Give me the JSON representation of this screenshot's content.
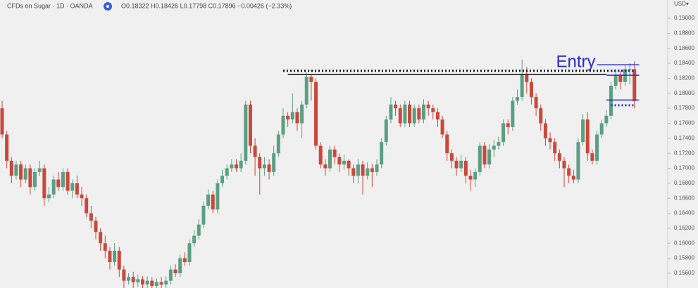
{
  "chart_data": {
    "type": "candlestick",
    "title": "CFDs on Sugar · 1D · OANDA",
    "subtitle": "O0.18322 H0.18426 L0.17798 C0.17896 −0.00426 (−2.33%)",
    "currency": "USD▾",
    "up_color": "#5b9f83",
    "down_color": "#c9483b",
    "ylim": [
      0.15403,
      0.19244
    ],
    "yticks": [
      {
        "value": 0.19,
        "label": "0.19000"
      },
      {
        "value": 0.188,
        "label": "0.18800"
      },
      {
        "value": 0.186,
        "label": "0.18600"
      },
      {
        "value": 0.184,
        "label": "0.18400"
      },
      {
        "value": 0.182,
        "label": "0.18200"
      },
      {
        "value": 0.18,
        "label": "0.18000"
      },
      {
        "value": 0.178,
        "label": "0.17800"
      },
      {
        "value": 0.176,
        "label": "0.17600"
      },
      {
        "value": 0.174,
        "label": "0.17400"
      },
      {
        "value": 0.172,
        "label": "0.17200"
      },
      {
        "value": 0.17,
        "label": "0.17000"
      },
      {
        "value": 0.168,
        "label": "0.16800"
      },
      {
        "value": 0.166,
        "label": "0.16600"
      },
      {
        "value": 0.164,
        "label": "0.16400"
      },
      {
        "value": 0.162,
        "label": "0.16200"
      },
      {
        "value": 0.16,
        "label": "0.16000"
      },
      {
        "value": 0.158,
        "label": "0.15800"
      },
      {
        "value": 0.156,
        "label": "0.15600"
      }
    ],
    "ohlc": [
      [
        0.178,
        0.179,
        0.174,
        0.1745
      ],
      [
        0.1745,
        0.175,
        0.17,
        0.171
      ],
      [
        0.171,
        0.1715,
        0.168,
        0.169
      ],
      [
        0.169,
        0.171,
        0.1685,
        0.1705
      ],
      [
        0.1705,
        0.171,
        0.1675,
        0.1685
      ],
      [
        0.1685,
        0.1705,
        0.168,
        0.17
      ],
      [
        0.17,
        0.1705,
        0.1665,
        0.1675
      ],
      [
        0.1675,
        0.17,
        0.167,
        0.1695
      ],
      [
        0.1695,
        0.171,
        0.169,
        0.17
      ],
      [
        0.17,
        0.1705,
        0.165,
        0.166
      ],
      [
        0.166,
        0.1675,
        0.1655,
        0.1665
      ],
      [
        0.1665,
        0.169,
        0.166,
        0.1685
      ],
      [
        0.1685,
        0.1695,
        0.167,
        0.1675
      ],
      [
        0.1675,
        0.17,
        0.167,
        0.1695
      ],
      [
        0.1695,
        0.17,
        0.1665,
        0.167
      ],
      [
        0.167,
        0.1685,
        0.166,
        0.168
      ],
      [
        0.168,
        0.169,
        0.166,
        0.1665
      ],
      [
        0.1665,
        0.1675,
        0.165,
        0.166
      ],
      [
        0.166,
        0.1665,
        0.1635,
        0.164
      ],
      [
        0.164,
        0.165,
        0.162,
        0.163
      ],
      [
        0.163,
        0.1635,
        0.1605,
        0.1615
      ],
      [
        0.1615,
        0.162,
        0.159,
        0.16
      ],
      [
        0.16,
        0.161,
        0.158,
        0.159
      ],
      [
        0.159,
        0.1595,
        0.1565,
        0.1575
      ],
      [
        0.1575,
        0.16,
        0.157,
        0.159
      ],
      [
        0.159,
        0.1595,
        0.1555,
        0.1565
      ],
      [
        0.1565,
        0.157,
        0.154,
        0.155
      ],
      [
        0.155,
        0.156,
        0.1545,
        0.1555
      ],
      [
        0.1555,
        0.1562,
        0.154,
        0.1548
      ],
      [
        0.1548,
        0.1558,
        0.1542,
        0.1552
      ],
      [
        0.1552,
        0.1556,
        0.1538,
        0.1545
      ],
      [
        0.1545,
        0.1556,
        0.154,
        0.155
      ],
      [
        0.155,
        0.1555,
        0.1538,
        0.1543
      ],
      [
        0.1543,
        0.1553,
        0.1538,
        0.1548
      ],
      [
        0.1548,
        0.1555,
        0.154,
        0.1545
      ],
      [
        0.1545,
        0.1556,
        0.154,
        0.155
      ],
      [
        0.155,
        0.157,
        0.1545,
        0.1565
      ],
      [
        0.1565,
        0.1572,
        0.1555,
        0.156
      ],
      [
        0.156,
        0.1585,
        0.1555,
        0.158
      ],
      [
        0.158,
        0.1588,
        0.157,
        0.1575
      ],
      [
        0.1575,
        0.1605,
        0.157,
        0.16
      ],
      [
        0.16,
        0.1618,
        0.1595,
        0.161
      ],
      [
        0.161,
        0.1632,
        0.1605,
        0.1625
      ],
      [
        0.1625,
        0.1655,
        0.162,
        0.165
      ],
      [
        0.165,
        0.1672,
        0.1645,
        0.1665
      ],
      [
        0.1665,
        0.167,
        0.164,
        0.1645
      ],
      [
        0.1645,
        0.1685,
        0.164,
        0.168
      ],
      [
        0.168,
        0.1698,
        0.1675,
        0.169
      ],
      [
        0.169,
        0.1705,
        0.1685,
        0.17
      ],
      [
        0.17,
        0.1712,
        0.1695,
        0.1705
      ],
      [
        0.1705,
        0.1712,
        0.1695,
        0.17
      ],
      [
        0.17,
        0.172,
        0.1695,
        0.171
      ],
      [
        0.171,
        0.179,
        0.1705,
        0.1785
      ],
      [
        0.1785,
        0.179,
        0.172,
        0.173
      ],
      [
        0.173,
        0.174,
        0.169,
        0.1715
      ],
      [
        0.1715,
        0.172,
        0.1665,
        0.17
      ],
      [
        0.17,
        0.1715,
        0.169,
        0.1705
      ],
      [
        0.1705,
        0.1712,
        0.1685,
        0.1695
      ],
      [
        0.1695,
        0.173,
        0.169,
        0.172
      ],
      [
        0.172,
        0.175,
        0.1715,
        0.1745
      ],
      [
        0.1745,
        0.178,
        0.174,
        0.177
      ],
      [
        0.177,
        0.1775,
        0.1755,
        0.1765
      ],
      [
        0.1765,
        0.18,
        0.176,
        0.1775
      ],
      [
        0.1775,
        0.178,
        0.175,
        0.176
      ],
      [
        0.176,
        0.179,
        0.174,
        0.1785
      ],
      [
        0.1785,
        0.1828,
        0.178,
        0.1822
      ],
      [
        0.1822,
        0.1826,
        0.179,
        0.1815
      ],
      [
        0.1815,
        0.182,
        0.1725,
        0.173
      ],
      [
        0.173,
        0.1735,
        0.17,
        0.1705
      ],
      [
        0.1705,
        0.1712,
        0.169,
        0.17
      ],
      [
        0.17,
        0.173,
        0.1695,
        0.1725
      ],
      [
        0.1725,
        0.173,
        0.1705,
        0.1715
      ],
      [
        0.1715,
        0.172,
        0.1695,
        0.1705
      ],
      [
        0.1705,
        0.1718,
        0.1698,
        0.171
      ],
      [
        0.171,
        0.1712,
        0.169,
        0.17
      ],
      [
        0.17,
        0.1705,
        0.168,
        0.169
      ],
      [
        0.169,
        0.1712,
        0.168,
        0.1705
      ],
      [
        0.1705,
        0.171,
        0.1665,
        0.169
      ],
      [
        0.169,
        0.1708,
        0.1685,
        0.17
      ],
      [
        0.17,
        0.1706,
        0.1675,
        0.1695
      ],
      [
        0.1695,
        0.1712,
        0.169,
        0.1705
      ],
      [
        0.1705,
        0.174,
        0.17,
        0.1735
      ],
      [
        0.1735,
        0.177,
        0.173,
        0.1765
      ],
      [
        0.1765,
        0.1795,
        0.176,
        0.1785
      ],
      [
        0.1785,
        0.179,
        0.177,
        0.178
      ],
      [
        0.178,
        0.1785,
        0.1755,
        0.176
      ],
      [
        0.176,
        0.179,
        0.1755,
        0.1785
      ],
      [
        0.1785,
        0.179,
        0.1755,
        0.176
      ],
      [
        0.176,
        0.1785,
        0.1755,
        0.178
      ],
      [
        0.178,
        0.1785,
        0.176,
        0.1765
      ],
      [
        0.1765,
        0.1792,
        0.176,
        0.1785
      ],
      [
        0.1785,
        0.179,
        0.177,
        0.178
      ],
      [
        0.178,
        0.1785,
        0.1765,
        0.1775
      ],
      [
        0.1775,
        0.178,
        0.1755,
        0.1765
      ],
      [
        0.1765,
        0.177,
        0.174,
        0.1745
      ],
      [
        0.1745,
        0.175,
        0.171,
        0.172
      ],
      [
        0.172,
        0.1725,
        0.17,
        0.171
      ],
      [
        0.171,
        0.1715,
        0.169,
        0.17
      ],
      [
        0.17,
        0.1718,
        0.1695,
        0.171
      ],
      [
        0.171,
        0.1715,
        0.168,
        0.169
      ],
      [
        0.169,
        0.1698,
        0.167,
        0.1685
      ],
      [
        0.1685,
        0.17,
        0.1675,
        0.1695
      ],
      [
        0.1695,
        0.1735,
        0.169,
        0.173
      ],
      [
        0.173,
        0.1735,
        0.17,
        0.1705
      ],
      [
        0.1705,
        0.1732,
        0.17,
        0.1725
      ],
      [
        0.1725,
        0.1738,
        0.1715,
        0.173
      ],
      [
        0.173,
        0.1742,
        0.1725,
        0.1735
      ],
      [
        0.1735,
        0.1765,
        0.173,
        0.176
      ],
      [
        0.176,
        0.1765,
        0.1745,
        0.1755
      ],
      [
        0.1755,
        0.1795,
        0.175,
        0.179
      ],
      [
        0.179,
        0.1805,
        0.1785,
        0.1795
      ],
      [
        0.1795,
        0.1845,
        0.179,
        0.1825
      ],
      [
        0.1825,
        0.1835,
        0.18,
        0.1815
      ],
      [
        0.1815,
        0.182,
        0.1785,
        0.1795
      ],
      [
        0.1795,
        0.18,
        0.177,
        0.178
      ],
      [
        0.178,
        0.1785,
        0.175,
        0.176
      ],
      [
        0.176,
        0.1765,
        0.173,
        0.174
      ],
      [
        0.174,
        0.1748,
        0.1725,
        0.1735
      ],
      [
        0.1735,
        0.174,
        0.171,
        0.172
      ],
      [
        0.172,
        0.1725,
        0.17,
        0.171
      ],
      [
        0.171,
        0.1715,
        0.1675,
        0.17
      ],
      [
        0.17,
        0.1705,
        0.168,
        0.169
      ],
      [
        0.169,
        0.1698,
        0.168,
        0.1685
      ],
      [
        0.1685,
        0.174,
        0.168,
        0.1735
      ],
      [
        0.1735,
        0.1772,
        0.173,
        0.1765
      ],
      [
        0.1765,
        0.1775,
        0.171,
        0.172
      ],
      [
        0.172,
        0.1725,
        0.1705,
        0.171
      ],
      [
        0.171,
        0.175,
        0.1705,
        0.1745
      ],
      [
        0.1745,
        0.1765,
        0.174,
        0.176
      ],
      [
        0.176,
        0.1778,
        0.1755,
        0.177
      ],
      [
        0.177,
        0.1815,
        0.1765,
        0.181
      ],
      [
        0.181,
        0.1832,
        0.1805,
        0.1825
      ],
      [
        0.1825,
        0.183,
        0.1805,
        0.1815
      ],
      [
        0.1815,
        0.1838,
        0.181,
        0.1832
      ],
      [
        0.1832,
        0.184,
        0.1812,
        0.18322
      ],
      [
        0.18322,
        0.18426,
        0.17798,
        0.17896
      ]
    ],
    "levels": [
      {
        "value": 0.183,
        "from": 60,
        "to": 135,
        "color": "#111111",
        "style": "dotted"
      },
      {
        "value": 0.1825,
        "from": 61,
        "to": 129,
        "color": "#111111",
        "style": "solid"
      },
      {
        "value": 0.1838,
        "from": 127,
        "to": 136,
        "color": "#2b2bd0",
        "style": "solid"
      },
      {
        "value": 0.183,
        "from": 130,
        "to": 135,
        "color": "#2b2bd0",
        "style": "dotted"
      },
      {
        "value": 0.1824,
        "from": 129,
        "to": 136,
        "color": "#2b2bd0",
        "style": "solid"
      },
      {
        "value": 0.1791,
        "from": 129,
        "to": 136,
        "color": "#2b2bd0",
        "style": "solid"
      },
      {
        "value": 0.1784,
        "from": 130,
        "to": 135,
        "color": "#2b2bd0",
        "style": "dotted"
      }
    ],
    "annotation": {
      "text": "Entry",
      "color": "#2b2bd0",
      "value": 0.1838,
      "at": 127
    }
  }
}
